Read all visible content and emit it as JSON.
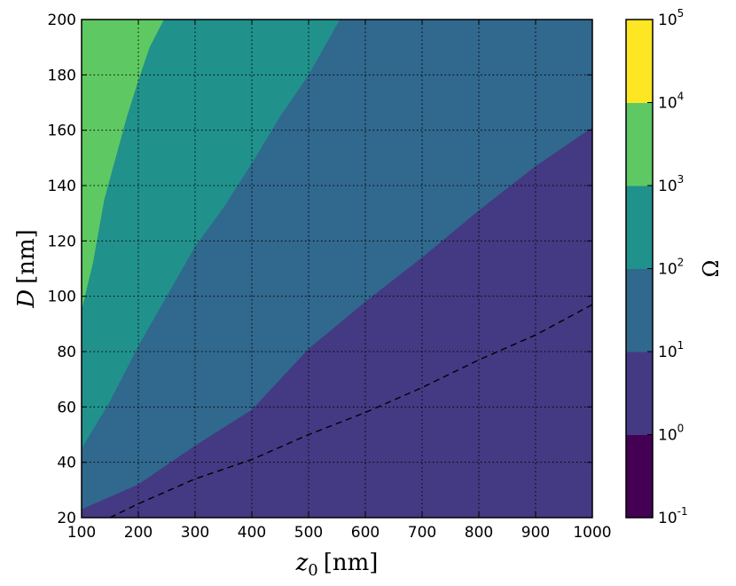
{
  "chart_data": {
    "type": "filled-contour",
    "title": "",
    "xlabel": {
      "symbol": "z",
      "subscript": "0",
      "unit": "[nm]"
    },
    "ylabel": {
      "symbol": "D",
      "unit": "[nm]"
    },
    "xlim": [
      100,
      1000
    ],
    "ylim": [
      20,
      200
    ],
    "xticks": [
      "100",
      "200",
      "300",
      "400",
      "500",
      "600",
      "700",
      "800",
      "900",
      "1000"
    ],
    "yticks": [
      "20",
      "40",
      "60",
      "80",
      "100",
      "120",
      "140",
      "160",
      "180",
      "200"
    ],
    "grid": "dotted",
    "colorbar": {
      "label": "Ω",
      "scale": "log",
      "ticks": [
        {
          "base": "10",
          "exp": "-1"
        },
        {
          "base": "10",
          "exp": "0"
        },
        {
          "base": "10",
          "exp": "1"
        },
        {
          "base": "10",
          "exp": "2"
        },
        {
          "base": "10",
          "exp": "3"
        },
        {
          "base": "10",
          "exp": "4"
        },
        {
          "base": "10",
          "exp": "5"
        }
      ],
      "colors": [
        "#440154",
        "#443983",
        "#31688e",
        "#21918c",
        "#5ec962",
        "#fde725"
      ]
    },
    "contour_levels": [
      {
        "level": "10^1",
        "color": "#31688e",
        "boundary": [
          [
            100,
            23
          ],
          [
            200,
            32
          ],
          [
            300,
            46
          ],
          [
            400,
            59
          ],
          [
            500,
            81
          ],
          [
            600,
            98
          ],
          [
            700,
            114
          ],
          [
            800,
            131
          ],
          [
            900,
            147
          ],
          [
            1000,
            161
          ]
        ]
      },
      {
        "level": "10^2",
        "color": "#21918c",
        "boundary": [
          [
            100,
            45
          ],
          [
            150,
            62
          ],
          [
            200,
            82
          ],
          [
            250,
            100
          ],
          [
            300,
            118
          ],
          [
            350,
            132
          ],
          [
            400,
            148
          ],
          [
            450,
            165
          ],
          [
            500,
            180
          ],
          [
            555,
            200
          ]
        ]
      },
      {
        "level": "10^3",
        "color": "#5ec962",
        "boundary": [
          [
            100,
            95
          ],
          [
            120,
            112
          ],
          [
            140,
            135
          ],
          [
            160,
            150
          ],
          [
            180,
            165
          ],
          [
            200,
            178
          ],
          [
            220,
            190
          ],
          [
            245,
            200
          ]
        ]
      }
    ],
    "dashed_line": [
      [
        150,
        20
      ],
      [
        200,
        25
      ],
      [
        300,
        34
      ],
      [
        400,
        41
      ],
      [
        500,
        50
      ],
      [
        600,
        58
      ],
      [
        700,
        67
      ],
      [
        800,
        77
      ],
      [
        900,
        86
      ],
      [
        1000,
        97
      ]
    ]
  }
}
